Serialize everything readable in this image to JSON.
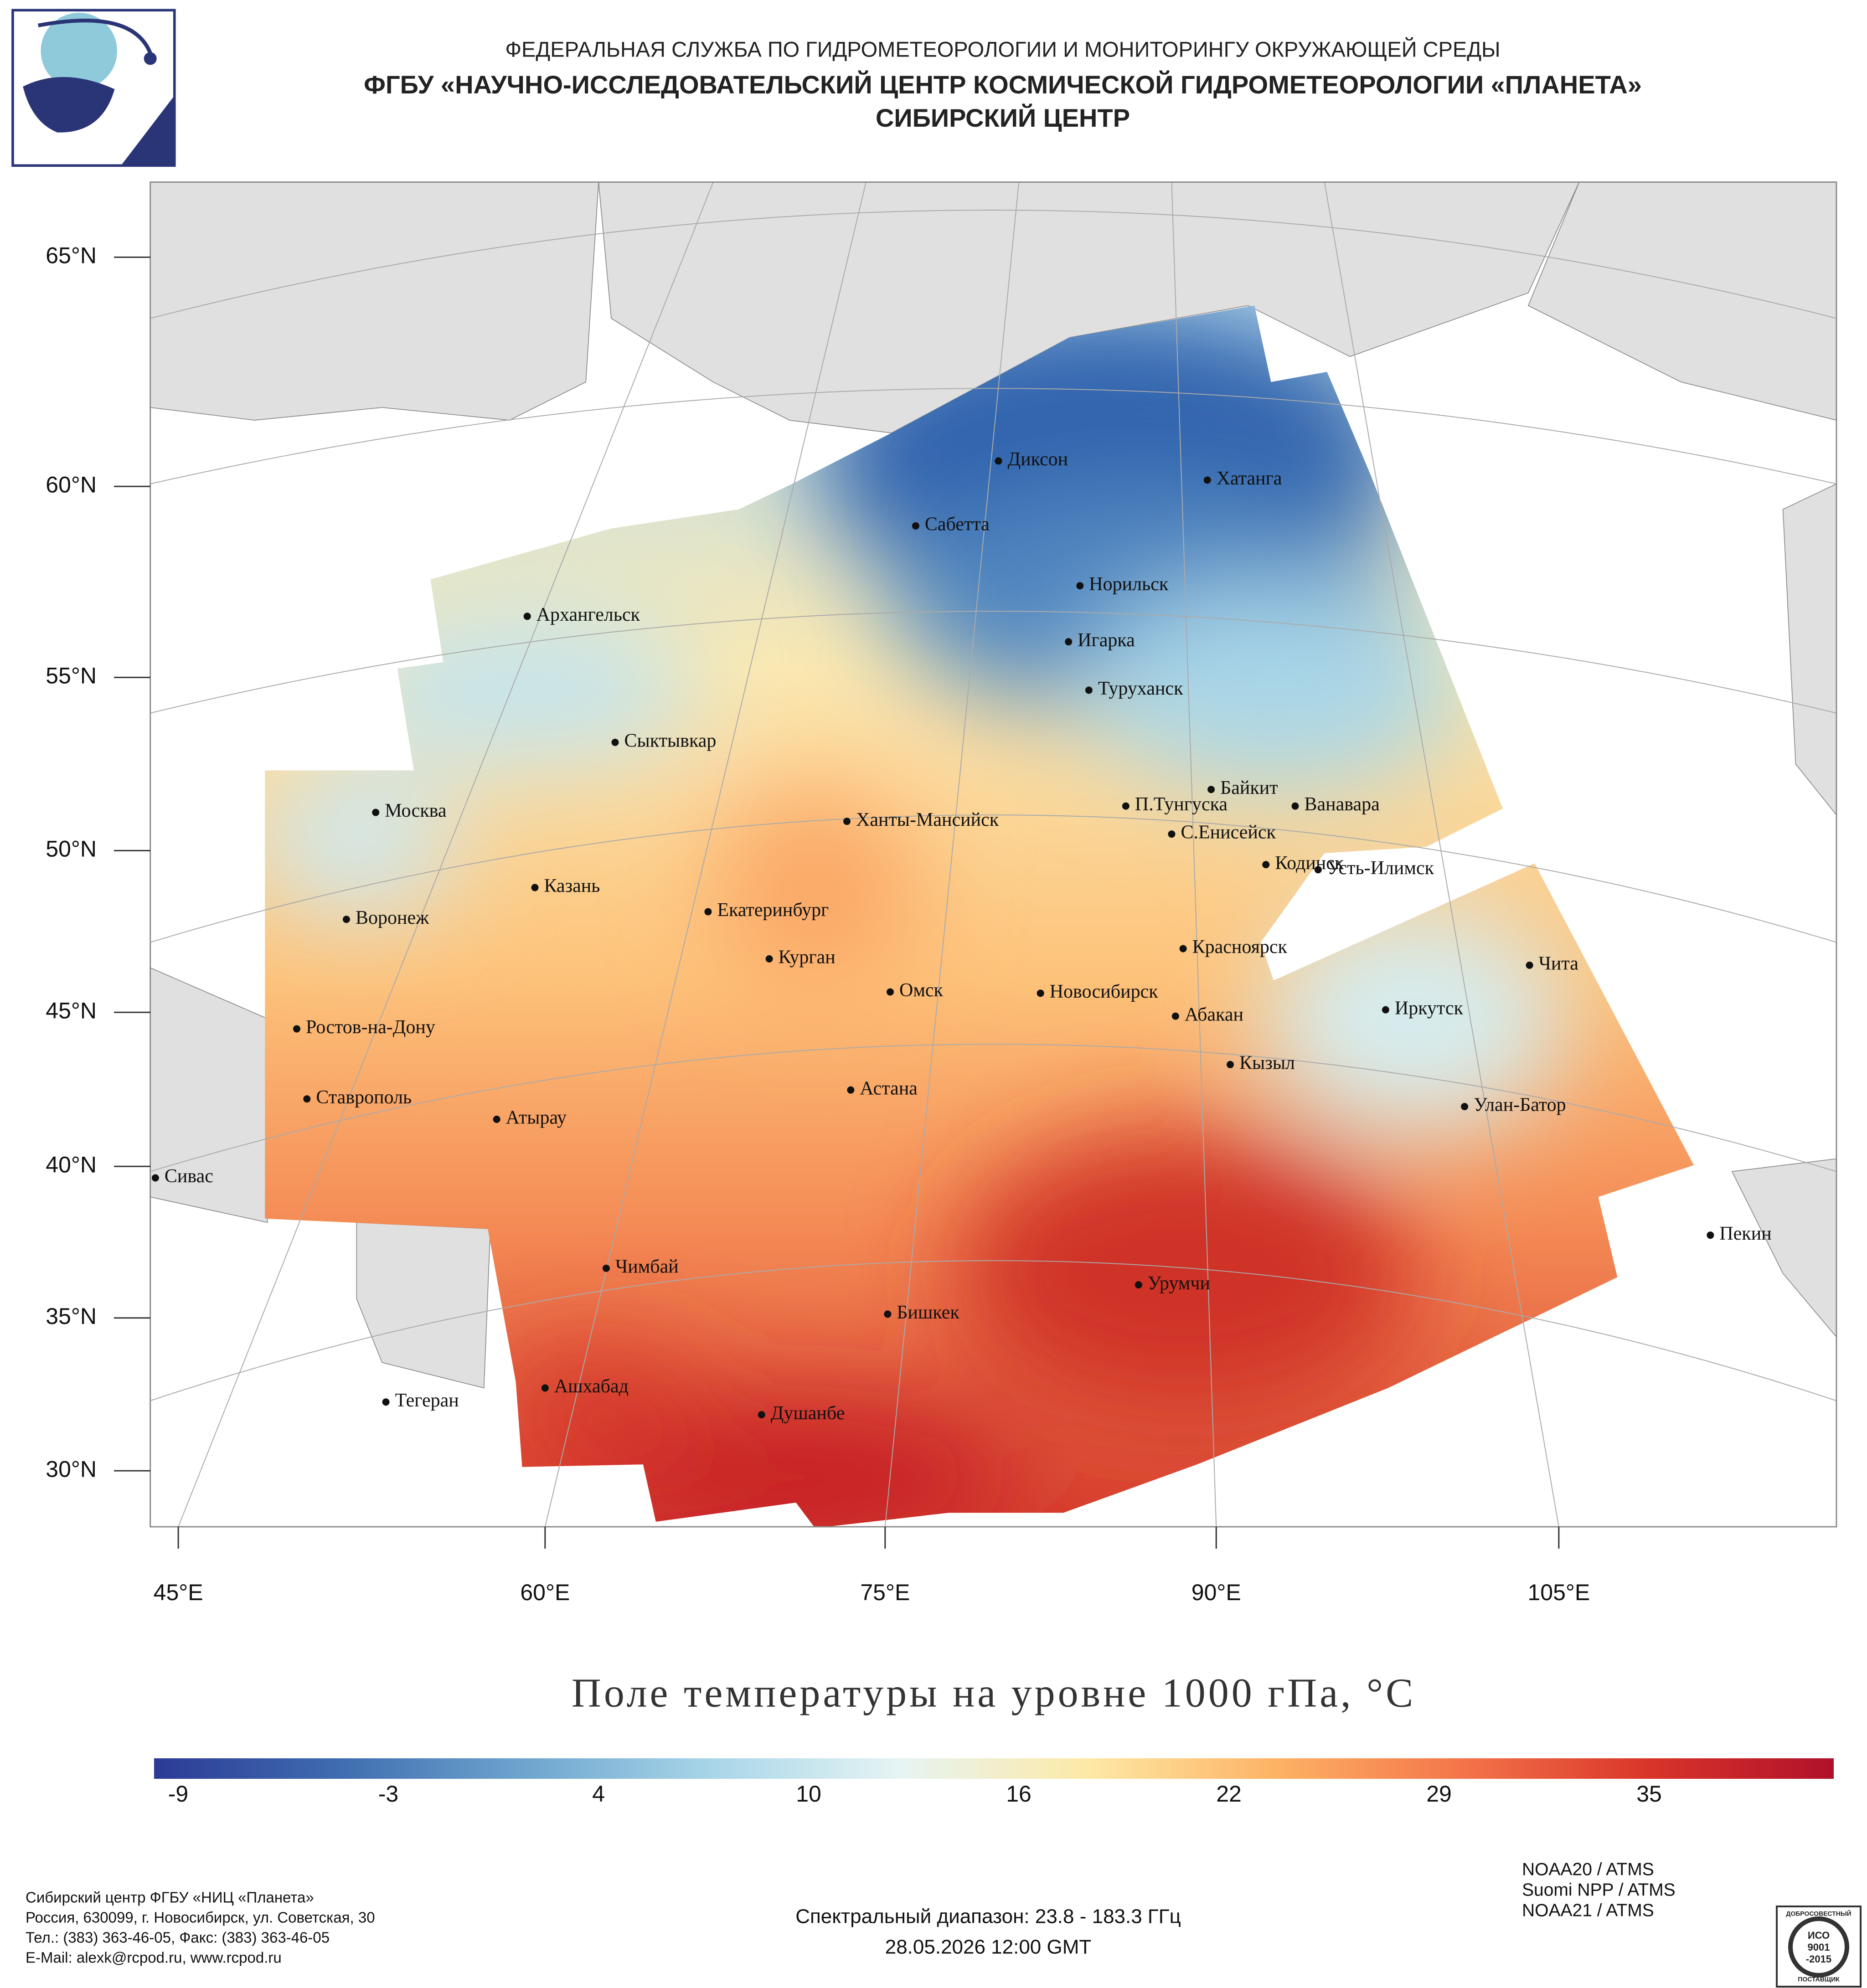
{
  "header": {
    "agency": "ФЕДЕРАЛЬНАЯ СЛУЖБА ПО ГИДРОМЕТЕОРОЛОГИИ И МОНИТОРИНГУ ОКРУЖАЮЩЕЙ СРЕДЫ",
    "center": "ФГБУ «НАУЧНО-ИССЛЕДОВАТЕЛЬСКИЙ ЦЕНТР КОСМИЧЕСКОЙ ГИДРОМЕТЕОРОЛОГИИ «ПЛАНЕТА»",
    "branch": "СИБИРСКИЙ ЦЕНТР"
  },
  "map": {
    "lat_labels": [
      "65°N",
      "60°N",
      "55°N",
      "50°N",
      "45°N",
      "40°N",
      "35°N",
      "30°N"
    ],
    "lon_labels": [
      "45°E",
      "60°E",
      "75°E",
      "90°E",
      "105°E"
    ],
    "cities": [
      "Диксон",
      "Хатанга",
      "Сабетта",
      "Норильск",
      "Архангельск",
      "Игарка",
      "Туруханск",
      "Сыктывкар",
      "Байкит",
      "П.Тунгуска",
      "Ванавара",
      "Москва",
      "Ханты-Мансийск",
      "С.Енисейск",
      "Кодинск",
      "Усть-Илимск",
      "Казань",
      "Екатеринбург",
      "Воронеж",
      "Красноярск",
      "Курган",
      "Чита",
      "Омск",
      "Новосибирск",
      "Иркутск",
      "Абакан",
      "Ростов-на-Дону",
      "Кызыл",
      "Астана",
      "Ставрополь",
      "Улан-Батор",
      "Атырау",
      "Сивас",
      "Пекин",
      "Чимбай",
      "Урумчи",
      "Бишкек",
      "Ашхабад",
      "Тегеран",
      "Душанбе"
    ]
  },
  "title": "Поле температуры на уровне 1000 гПа, °С",
  "colorbar": {
    "ticks": [
      -9,
      -3,
      4,
      10,
      16,
      22,
      29,
      35
    ],
    "colors": [
      "#2c3a96",
      "#3f6db0",
      "#6fa6cf",
      "#a9d6e8",
      "#e6f4f4",
      "#fde9a6",
      "#fdb365",
      "#f4754a",
      "#d9352a",
      "#b0112a"
    ]
  },
  "footer": {
    "address": [
      "Сибирский центр ФГБУ «НИЦ «Планета»",
      "Россия, 630099, г. Новосибирск, ул. Советская, 30",
      "Тел.: (383) 363-46-05, Факс: (383) 363-46-05",
      "E-Mail: alexk@rcpod.ru, www.rcpod.ru"
    ],
    "spectral": "Спектральный диапазон: 23.8 - 183.3 ГГц",
    "date": "28.05.2026 12:00 GMT",
    "satellites": [
      "NOAA20 / ATMS",
      "Suomi NPP / ATMS",
      "NOAA21 / ATMS"
    ],
    "iso": [
      "ДОБРОСОВЕСТНЫЙ",
      "ИСО",
      "9001",
      "-2015",
      "ПОСТАВЩИК"
    ]
  }
}
